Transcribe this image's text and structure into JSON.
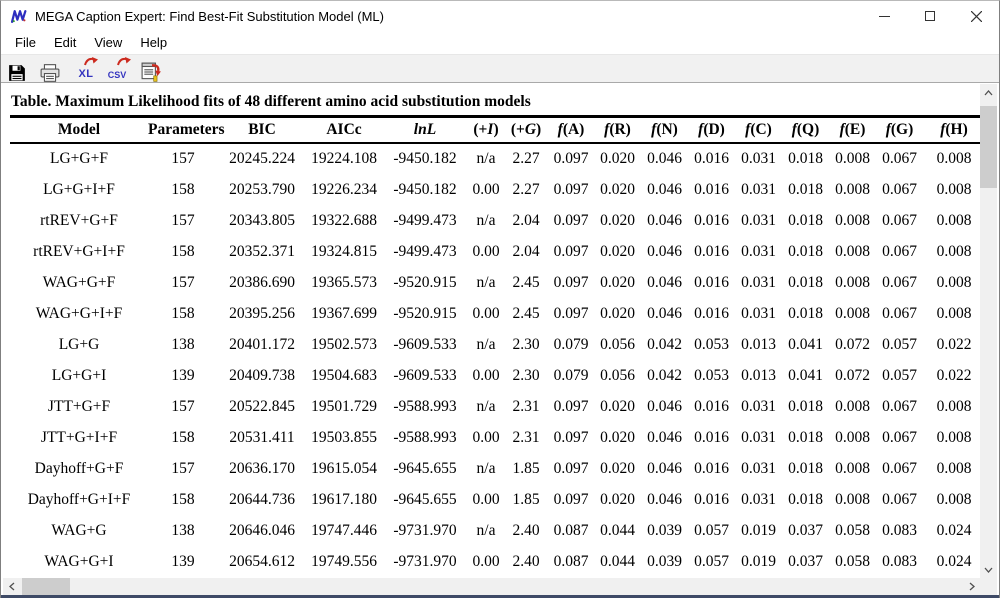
{
  "window": {
    "title": "MEGA Caption Expert: Find Best-Fit Substitution Model (ML)"
  },
  "menu": {
    "items": [
      "File",
      "Edit",
      "View",
      "Help"
    ]
  },
  "toolbar": {
    "excel_label": "XL",
    "csv_label": "CSV",
    "icons": [
      "save-icon",
      "print-icon",
      "export-excel-icon",
      "export-csv-icon",
      "copy-caption-icon"
    ]
  },
  "table": {
    "caption": "Table. Maximum Likelihood fits of 48 different amino acid substitution models",
    "columns": [
      "Model",
      "Parameters",
      "BIC",
      "AICc",
      "lnL",
      "(+I)",
      "(+G)",
      "f(A)",
      "f(R)",
      "f(N)",
      "f(D)",
      "f(C)",
      "f(Q)",
      "f(E)",
      "f(G)",
      "f(H)"
    ],
    "rows": [
      [
        "LG+G+F",
        "157",
        "20245.224",
        "19224.108",
        "-9450.182",
        "n/a",
        "2.27",
        "0.097",
        "0.020",
        "0.046",
        "0.016",
        "0.031",
        "0.018",
        "0.008",
        "0.067",
        "0.008"
      ],
      [
        "LG+G+I+F",
        "158",
        "20253.790",
        "19226.234",
        "-9450.182",
        "0.00",
        "2.27",
        "0.097",
        "0.020",
        "0.046",
        "0.016",
        "0.031",
        "0.018",
        "0.008",
        "0.067",
        "0.008"
      ],
      [
        "rtREV+G+F",
        "157",
        "20343.805",
        "19322.688",
        "-9499.473",
        "n/a",
        "2.04",
        "0.097",
        "0.020",
        "0.046",
        "0.016",
        "0.031",
        "0.018",
        "0.008",
        "0.067",
        "0.008"
      ],
      [
        "rtREV+G+I+F",
        "158",
        "20352.371",
        "19324.815",
        "-9499.473",
        "0.00",
        "2.04",
        "0.097",
        "0.020",
        "0.046",
        "0.016",
        "0.031",
        "0.018",
        "0.008",
        "0.067",
        "0.008"
      ],
      [
        "WAG+G+F",
        "157",
        "20386.690",
        "19365.573",
        "-9520.915",
        "n/a",
        "2.45",
        "0.097",
        "0.020",
        "0.046",
        "0.016",
        "0.031",
        "0.018",
        "0.008",
        "0.067",
        "0.008"
      ],
      [
        "WAG+G+I+F",
        "158",
        "20395.256",
        "19367.699",
        "-9520.915",
        "0.00",
        "2.45",
        "0.097",
        "0.020",
        "0.046",
        "0.016",
        "0.031",
        "0.018",
        "0.008",
        "0.067",
        "0.008"
      ],
      [
        "LG+G",
        "138",
        "20401.172",
        "19502.573",
        "-9609.533",
        "n/a",
        "2.30",
        "0.079",
        "0.056",
        "0.042",
        "0.053",
        "0.013",
        "0.041",
        "0.072",
        "0.057",
        "0.022"
      ],
      [
        "LG+G+I",
        "139",
        "20409.738",
        "19504.683",
        "-9609.533",
        "0.00",
        "2.30",
        "0.079",
        "0.056",
        "0.042",
        "0.053",
        "0.013",
        "0.041",
        "0.072",
        "0.057",
        "0.022"
      ],
      [
        "JTT+G+F",
        "157",
        "20522.845",
        "19501.729",
        "-9588.993",
        "n/a",
        "2.31",
        "0.097",
        "0.020",
        "0.046",
        "0.016",
        "0.031",
        "0.018",
        "0.008",
        "0.067",
        "0.008"
      ],
      [
        "JTT+G+I+F",
        "158",
        "20531.411",
        "19503.855",
        "-9588.993",
        "0.00",
        "2.31",
        "0.097",
        "0.020",
        "0.046",
        "0.016",
        "0.031",
        "0.018",
        "0.008",
        "0.067",
        "0.008"
      ],
      [
        "Dayhoff+G+F",
        "157",
        "20636.170",
        "19615.054",
        "-9645.655",
        "n/a",
        "1.85",
        "0.097",
        "0.020",
        "0.046",
        "0.016",
        "0.031",
        "0.018",
        "0.008",
        "0.067",
        "0.008"
      ],
      [
        "Dayhoff+G+I+F",
        "158",
        "20644.736",
        "19617.180",
        "-9645.655",
        "0.00",
        "1.85",
        "0.097",
        "0.020",
        "0.046",
        "0.016",
        "0.031",
        "0.018",
        "0.008",
        "0.067",
        "0.008"
      ],
      [
        "WAG+G",
        "138",
        "20646.046",
        "19747.446",
        "-9731.970",
        "n/a",
        "2.40",
        "0.087",
        "0.044",
        "0.039",
        "0.057",
        "0.019",
        "0.037",
        "0.058",
        "0.083",
        "0.024"
      ],
      [
        "WAG+G+I",
        "139",
        "20654.612",
        "19749.556",
        "-9731.970",
        "0.00",
        "2.40",
        "0.087",
        "0.044",
        "0.039",
        "0.057",
        "0.019",
        "0.037",
        "0.058",
        "0.083",
        "0.024"
      ]
    ]
  },
  "colors": {
    "accent_red": "#cc2a1e",
    "accent_blue": "#3434bf",
    "toolbar_bg": "#f1f1f1",
    "scroll_track": "#f0f0f0",
    "scroll_thumb": "#cdcdcd"
  }
}
